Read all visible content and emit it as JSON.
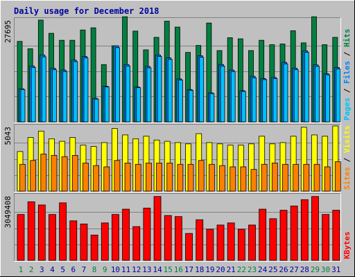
{
  "title": "Daily usage for December 2018",
  "colors": {
    "background": "#c0c0c0",
    "plot_background": "#c0c0c0",
    "title": "#0000a0",
    "hits": "#008040",
    "files": "#0080ff",
    "pages": "#00c0ff",
    "visits": "#ffff00",
    "sites": "#ff8000",
    "kbytes": "#ff0000",
    "weekday_label": "#0000a0",
    "weekend_label": "#008040"
  },
  "chart_data": [
    {
      "type": "bar",
      "name": "pages-files-hits",
      "categories": [
        "1",
        "2",
        "3",
        "4",
        "5",
        "6",
        "7",
        "8",
        "9",
        "10",
        "11",
        "12",
        "13",
        "14",
        "15",
        "16",
        "17",
        "18",
        "19",
        "20",
        "21",
        "22",
        "23",
        "24",
        "25",
        "26",
        "27",
        "28",
        "29",
        "30",
        "31"
      ],
      "weekend": [
        "1",
        "2",
        "8",
        "9",
        "15",
        "16",
        "22",
        "23",
        "29",
        "30"
      ],
      "y_tick_label": "27695",
      "ylim": [
        0,
        27695
      ],
      "axis_label_parts": [
        "Pages",
        " / ",
        "Files",
        " / ",
        "Hits"
      ],
      "series": [
        {
          "name": "Hits",
          "values": [
            21900,
            19900,
            27695,
            24100,
            22200,
            22200,
            25000,
            25600,
            15600,
            20700,
            28600,
            24700,
            19600,
            23000,
            27400,
            25800,
            18900,
            20800,
            26900,
            19400,
            22900,
            22600,
            19400,
            22200,
            21000,
            21200,
            24800,
            21500,
            28600,
            21000,
            23000
          ]
        },
        {
          "name": "Files",
          "values": [
            9000,
            15200,
            18200,
            14600,
            14100,
            16800,
            17800,
            6400,
            9700,
            20700,
            15600,
            9500,
            15100,
            18200,
            17400,
            11700,
            8800,
            18000,
            7900,
            15600,
            14100,
            8500,
            12400,
            11800,
            12100,
            16200,
            14600,
            19300,
            15500,
            13100,
            14800
          ]
        },
        {
          "name": "Pages",
          "values": [
            8800,
            14800,
            17700,
            14200,
            13700,
            16400,
            17400,
            6200,
            9500,
            20200,
            15200,
            9300,
            14700,
            17800,
            17000,
            11400,
            8600,
            17600,
            7700,
            15200,
            13700,
            8300,
            12000,
            11500,
            11800,
            15800,
            14200,
            18900,
            15100,
            12800,
            14400
          ]
        }
      ]
    },
    {
      "type": "bar",
      "name": "sites-visits",
      "categories": [
        "1",
        "2",
        "3",
        "4",
        "5",
        "6",
        "7",
        "8",
        "9",
        "10",
        "11",
        "12",
        "13",
        "14",
        "15",
        "16",
        "17",
        "18",
        "19",
        "20",
        "21",
        "22",
        "23",
        "24",
        "25",
        "26",
        "27",
        "28",
        "29",
        "30",
        "31"
      ],
      "y_tick_label": "5043",
      "ylim": [
        0,
        5043
      ],
      "axis_label_parts": [
        "Sites",
        " / ",
        "Visits"
      ],
      "series": [
        {
          "name": "Visits",
          "values": [
            3100,
            4200,
            4700,
            4100,
            3900,
            4200,
            3600,
            3500,
            3800,
            4900,
            4400,
            4100,
            4300,
            4000,
            3900,
            3800,
            3700,
            4500,
            3800,
            3700,
            3600,
            3600,
            3700,
            4300,
            3700,
            3800,
            4300,
            5000,
            4400,
            4300,
            5100
          ]
        },
        {
          "name": "Sites",
          "values": [
            2100,
            2400,
            2900,
            2800,
            2700,
            2800,
            2200,
            2000,
            1900,
            2400,
            2200,
            2100,
            2200,
            2200,
            2200,
            2100,
            2100,
            2400,
            2100,
            2000,
            1900,
            1900,
            1700,
            2100,
            2200,
            2100,
            2100,
            2100,
            2100,
            1900,
            2300
          ]
        }
      ]
    },
    {
      "type": "bar",
      "name": "kbytes",
      "categories": [
        "1",
        "2",
        "3",
        "4",
        "5",
        "6",
        "7",
        "8",
        "9",
        "10",
        "11",
        "12",
        "13",
        "14",
        "15",
        "16",
        "17",
        "18",
        "19",
        "20",
        "21",
        "22",
        "23",
        "24",
        "25",
        "26",
        "27",
        "28",
        "29",
        "30",
        "31"
      ],
      "y_tick_label": "3049408",
      "ylim": [
        0,
        3049408
      ],
      "axis_label_parts": [
        "KBytes"
      ],
      "series": [
        {
          "name": "KBytes",
          "values": [
            2175000,
            2775000,
            2625000,
            2175000,
            2725000,
            1875000,
            1725000,
            1200000,
            1775000,
            2175000,
            2425000,
            1600000,
            2475000,
            3025000,
            2125000,
            2075000,
            1275000,
            1925000,
            1475000,
            1675000,
            1775000,
            1475000,
            1675000,
            2425000,
            1975000,
            2375000,
            2575000,
            2875000,
            3025000,
            2175000,
            2375000
          ]
        }
      ]
    }
  ]
}
